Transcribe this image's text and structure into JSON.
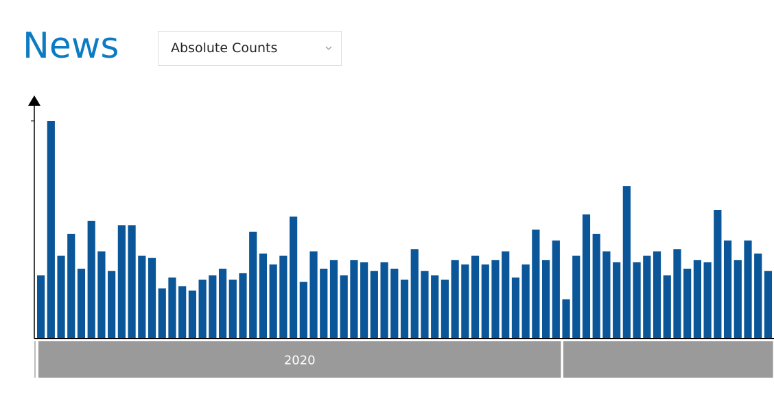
{
  "header": {
    "title": "News",
    "select": {
      "value": "Absolute Counts",
      "icon": "chevron-down-icon"
    }
  },
  "colors": {
    "title": "#0b7bc4",
    "bar": "#0a5699",
    "timeline": "#9a9a9a",
    "timeline_text": "#ffffff",
    "axis": "#000000"
  },
  "chart_data": {
    "type": "bar",
    "title": "",
    "xlabel": "",
    "ylabel": "",
    "ylim": [
      0,
      100
    ],
    "ticks_shown": false,
    "grid": false,
    "values": [
      29,
      100,
      38,
      48,
      32,
      54,
      40,
      31,
      52,
      52,
      38,
      37,
      23,
      28,
      24,
      22,
      27,
      29,
      32,
      27,
      30,
      49,
      39,
      34,
      38,
      56,
      26,
      40,
      32,
      36,
      29,
      36,
      35,
      31,
      35,
      32,
      27,
      41,
      31,
      29,
      27,
      36,
      34,
      38,
      34,
      36,
      40,
      28,
      34,
      50,
      36,
      45,
      18,
      38,
      57,
      48,
      40,
      35,
      70,
      35,
      38,
      40,
      29,
      41,
      32,
      36,
      35,
      59,
      45,
      36,
      45,
      39,
      31
    ],
    "timeline": [
      {
        "label": "2020",
        "start_bar": 0,
        "end_bar": 52
      },
      {
        "label": "",
        "start_bar": 52,
        "end_bar": 73
      }
    ]
  }
}
